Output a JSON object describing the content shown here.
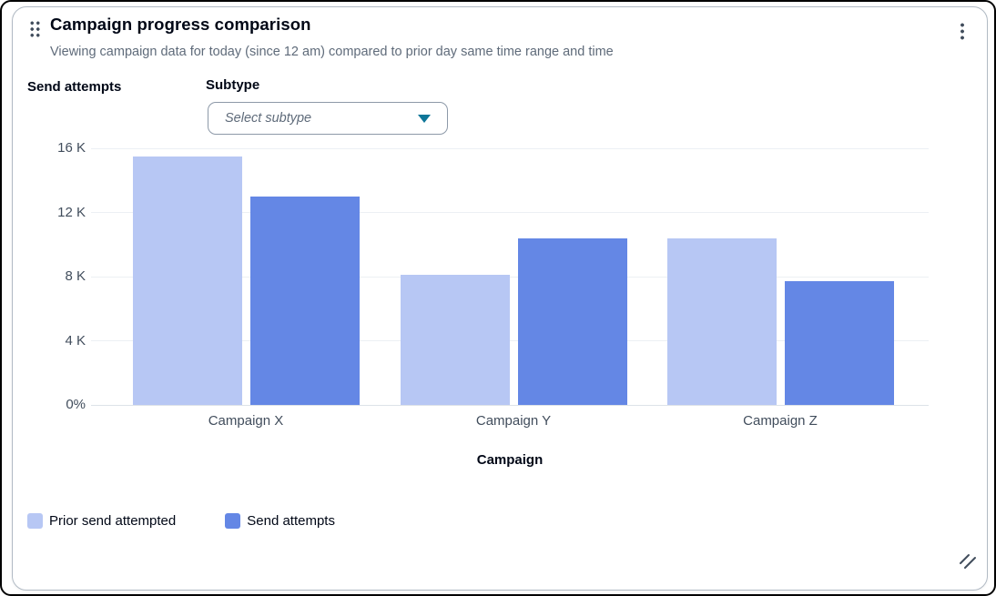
{
  "widget": {
    "title": "Campaign progress comparison",
    "subtitle": "Viewing campaign data for today (since 12 am) compared to prior day same time range and time"
  },
  "controls": {
    "subtype_label": "Subtype",
    "subtype_placeholder": "Select subtype"
  },
  "icons": {
    "drag_handle": "drag-handle-icon",
    "kebab_menu": "kebab-menu-icon",
    "caret_down": "caret-down-icon",
    "resize_handle": "resize-handle-icon"
  },
  "colors": {
    "prior_series": "#b7c7f4",
    "current_series": "#6487e5",
    "caret": "#0e7698",
    "gridline": "#ecf0f4",
    "baseline": "#dde2e8",
    "axis_text": "#414d5c",
    "title_text": "#000716",
    "subtitle_text": "#5f6b7a",
    "card_border": "#b1bac4"
  },
  "chart_data": {
    "type": "bar",
    "title": "Campaign progress comparison",
    "categories": [
      "Campaign X",
      "Campaign Y",
      "Campaign Z"
    ],
    "series": [
      {
        "name": "Prior send attempted",
        "color": "#b7c7f4",
        "values": [
          15500,
          8100,
          10400
        ]
      },
      {
        "name": "Send attempts",
        "color": "#6487e5",
        "values": [
          13000,
          10400,
          7700
        ]
      }
    ],
    "xlabel": "Campaign",
    "ylabel": "Send attempts",
    "ylim": [
      0,
      16000
    ],
    "yticks": {
      "values": [
        0,
        4000,
        8000,
        12000,
        16000
      ],
      "labels": [
        "0%",
        "4 K",
        "8 K",
        "12 K",
        "16 K"
      ]
    },
    "grid": true,
    "legend": {
      "position": "bottom-left",
      "entries": [
        "Prior send attempted",
        "Send attempts"
      ]
    }
  }
}
